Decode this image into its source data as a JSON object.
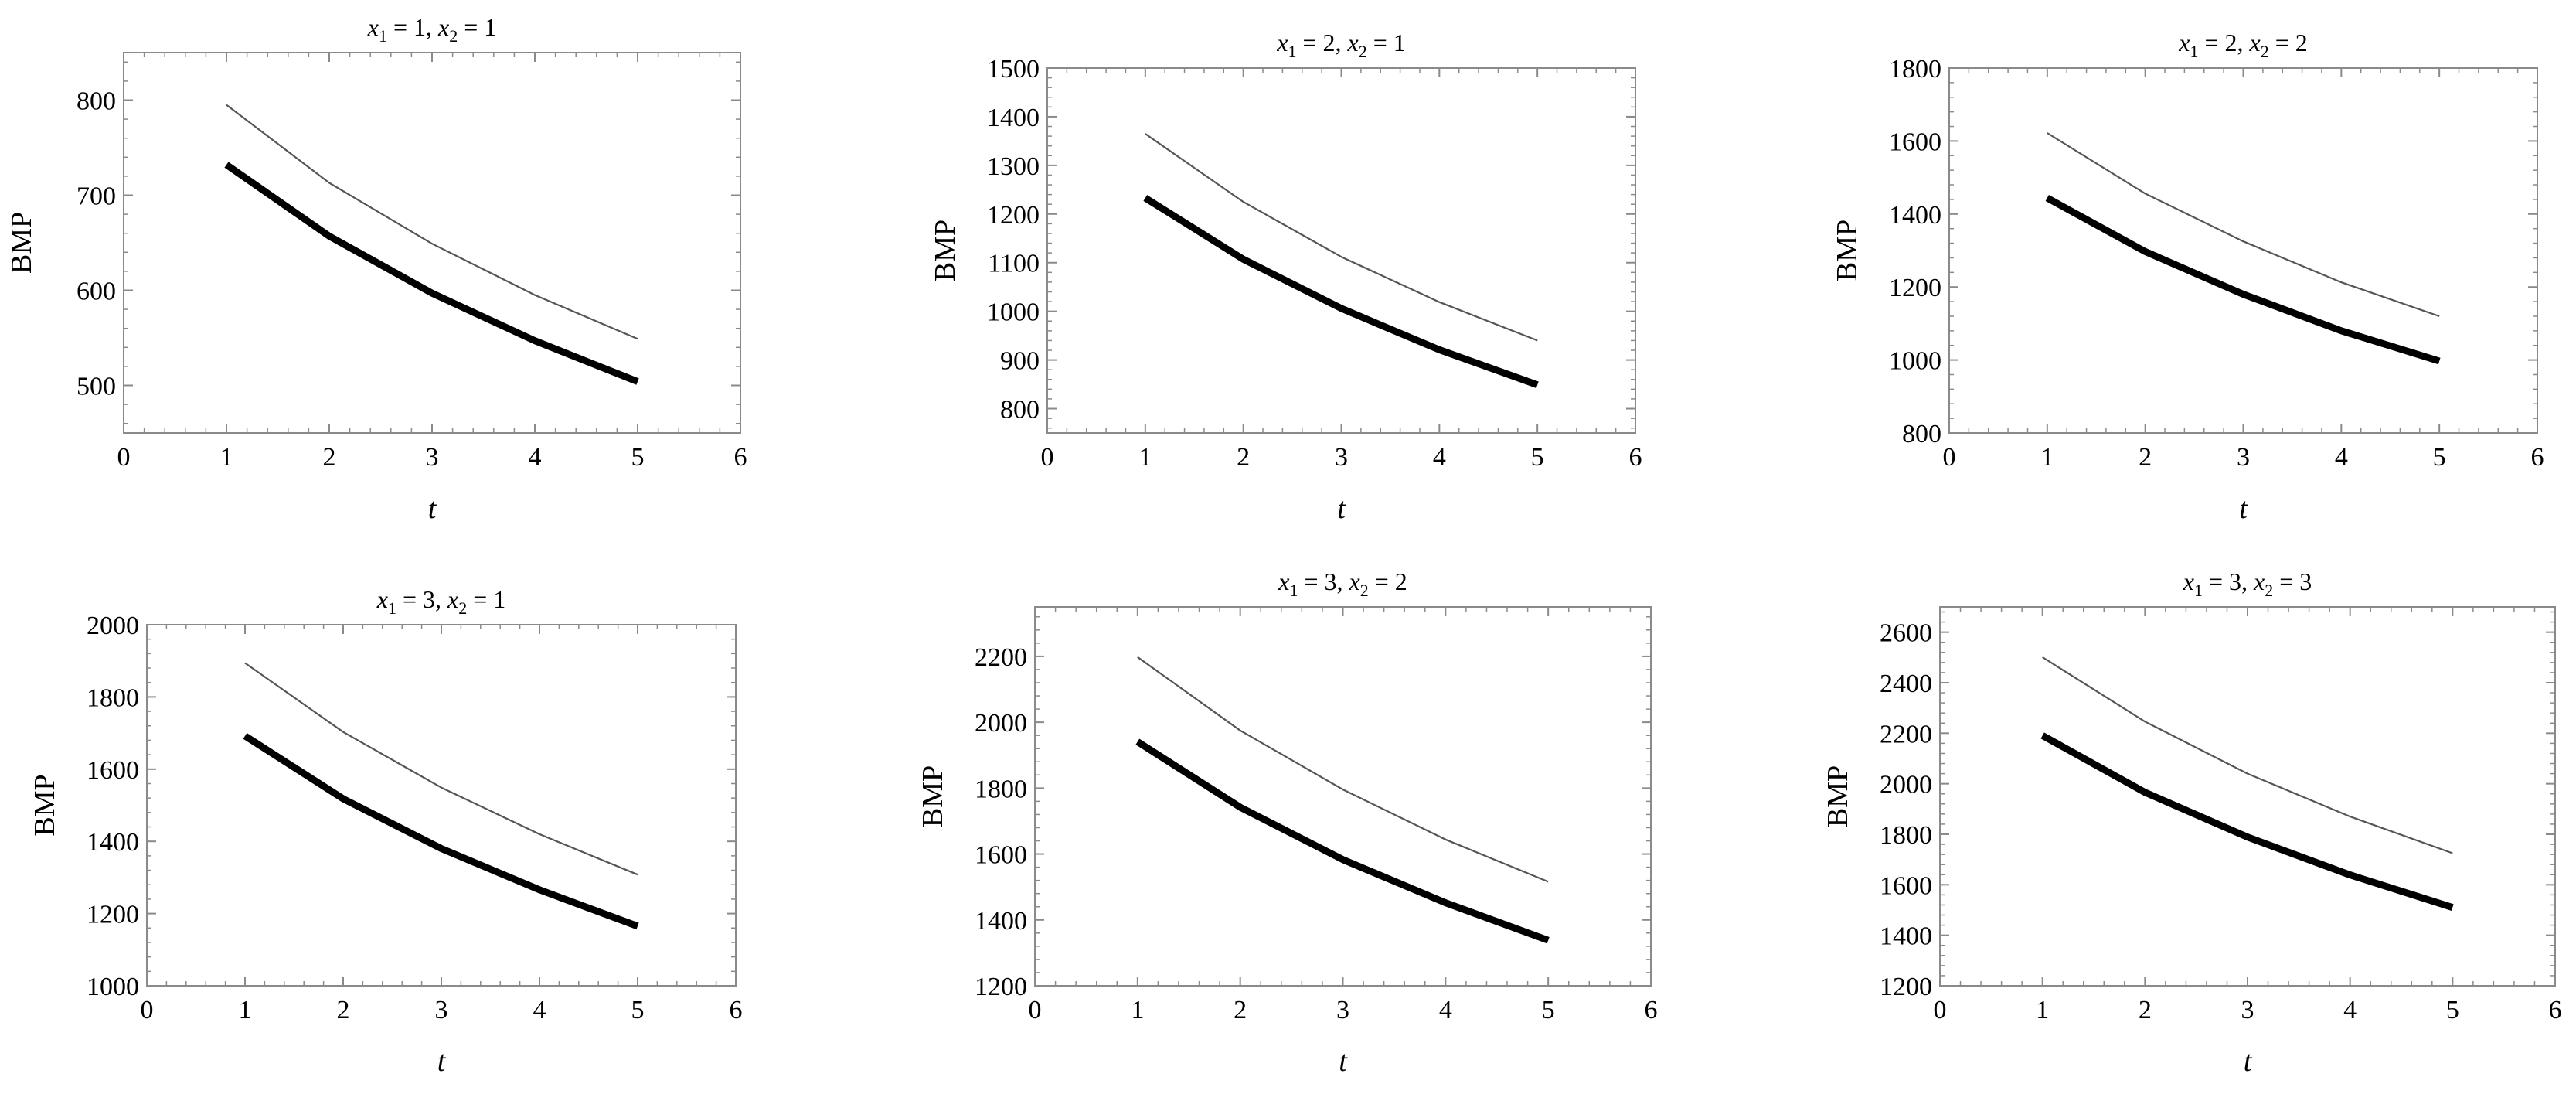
{
  "chart_data": [
    {
      "type": "line",
      "title_parts": [
        "1",
        "1"
      ],
      "xlabel": "t",
      "ylabel": "BMP",
      "xlim": [
        0,
        6
      ],
      "ylim": [
        450,
        850
      ],
      "xticks": [
        0,
        1,
        2,
        3,
        4,
        5,
        6
      ],
      "yticks": [
        500,
        600,
        700,
        800
      ],
      "xtick_labels": [
        "0",
        "1",
        "2",
        "3",
        "4",
        "5",
        "6"
      ],
      "ytick_labels": [
        "500",
        "600",
        "700",
        "800"
      ],
      "x": [
        1,
        2,
        3,
        4,
        5
      ],
      "series": [
        {
          "style": "thin",
          "values": [
            795,
            713,
            649,
            595,
            549
          ]
        },
        {
          "style": "thick",
          "values": [
            732,
            657,
            597,
            547,
            504
          ]
        }
      ]
    },
    {
      "type": "line",
      "title_parts": [
        "2",
        "1"
      ],
      "xlabel": "t",
      "ylabel": "BMP",
      "xlim": [
        0,
        6
      ],
      "ylim": [
        750,
        1500
      ],
      "xticks": [
        0,
        1,
        2,
        3,
        4,
        5,
        6
      ],
      "yticks": [
        800,
        900,
        1000,
        1100,
        1200,
        1300,
        1400,
        1500
      ],
      "xtick_labels": [
        "0",
        "1",
        "2",
        "3",
        "4",
        "5",
        "6"
      ],
      "ytick_labels": [
        "800",
        "900",
        "1000",
        "1100",
        "1200",
        "1300",
        "1400",
        "1500"
      ],
      "x": [
        1,
        2,
        3,
        4,
        5
      ],
      "series": [
        {
          "style": "thin",
          "values": [
            1365,
            1225,
            1112,
            1019,
            940
          ]
        },
        {
          "style": "thick",
          "values": [
            1233,
            1107,
            1006,
            921,
            849
          ]
        }
      ]
    },
    {
      "type": "line",
      "title_parts": [
        "2",
        "2"
      ],
      "xlabel": "t",
      "ylabel": "BMP",
      "xlim": [
        0,
        6
      ],
      "ylim": [
        800,
        1800
      ],
      "xticks": [
        0,
        1,
        2,
        3,
        4,
        5,
        6
      ],
      "yticks": [
        800,
        1000,
        1200,
        1400,
        1600,
        1800
      ],
      "xtick_labels": [
        "0",
        "1",
        "2",
        "3",
        "4",
        "5",
        "6"
      ],
      "ytick_labels": [
        "800",
        "1000",
        "1200",
        "1400",
        "1600",
        "1800"
      ],
      "x": [
        1,
        2,
        3,
        4,
        5
      ],
      "series": [
        {
          "style": "thin",
          "values": [
            1622,
            1456,
            1325,
            1213,
            1120
          ]
        },
        {
          "style": "thick",
          "values": [
            1444,
            1297,
            1180,
            1080,
            997
          ]
        }
      ]
    },
    {
      "type": "line",
      "title_parts": [
        "3",
        "1"
      ],
      "xlabel": "t",
      "ylabel": "BMP",
      "xlim": [
        0,
        6
      ],
      "ylim": [
        1000,
        2000
      ],
      "xticks": [
        0,
        1,
        2,
        3,
        4,
        5,
        6
      ],
      "yticks": [
        1000,
        1200,
        1400,
        1600,
        1800,
        2000
      ],
      "xtick_labels": [
        "0",
        "1",
        "2",
        "3",
        "4",
        "5",
        "6"
      ],
      "ytick_labels": [
        "1000",
        "1200",
        "1400",
        "1600",
        "1800",
        "2000"
      ],
      "x": [
        1,
        2,
        3,
        4,
        5
      ],
      "series": [
        {
          "style": "thin",
          "values": [
            1894,
            1703,
            1549,
            1420,
            1308
          ]
        },
        {
          "style": "thick",
          "values": [
            1692,
            1518,
            1380,
            1266,
            1165
          ]
        }
      ]
    },
    {
      "type": "line",
      "title_parts": [
        "3",
        "2"
      ],
      "xlabel": "t",
      "ylabel": "BMP",
      "xlim": [
        0,
        6
      ],
      "ylim": [
        1200,
        2350
      ],
      "xticks": [
        0,
        1,
        2,
        3,
        4,
        5,
        6
      ],
      "yticks": [
        1200,
        1400,
        1600,
        1800,
        2000,
        2200
      ],
      "xtick_labels": [
        "0",
        "1",
        "2",
        "3",
        "4",
        "5",
        "6"
      ],
      "ytick_labels": [
        "1200",
        "1400",
        "1600",
        "1800",
        "2000",
        "2200"
      ],
      "x": [
        1,
        2,
        3,
        4,
        5
      ],
      "series": [
        {
          "style": "thin",
          "values": [
            2198,
            1975,
            1796,
            1644,
            1516
          ]
        },
        {
          "style": "thick",
          "values": [
            1941,
            1742,
            1583,
            1452,
            1338
          ]
        }
      ]
    },
    {
      "type": "line",
      "title_parts": [
        "3",
        "3"
      ],
      "xlabel": "t",
      "ylabel": "BMP",
      "xlim": [
        0,
        6
      ],
      "ylim": [
        1200,
        2700
      ],
      "xticks": [
        0,
        1,
        2,
        3,
        4,
        5,
        6
      ],
      "yticks": [
        1200,
        1400,
        1600,
        1800,
        2000,
        2200,
        2400,
        2600
      ],
      "xtick_labels": [
        "0",
        "1",
        "2",
        "3",
        "4",
        "5",
        "6"
      ],
      "ytick_labels": [
        "1200",
        "1400",
        "1600",
        "1800",
        "2000",
        "2200",
        "2400",
        "2600"
      ],
      "x": [
        1,
        2,
        3,
        4,
        5
      ],
      "series": [
        {
          "style": "thin",
          "values": [
            2501,
            2246,
            2040,
            1870,
            1725
          ]
        },
        {
          "style": "thick",
          "values": [
            2191,
            1966,
            1789,
            1639,
            1510
          ]
        }
      ]
    }
  ]
}
